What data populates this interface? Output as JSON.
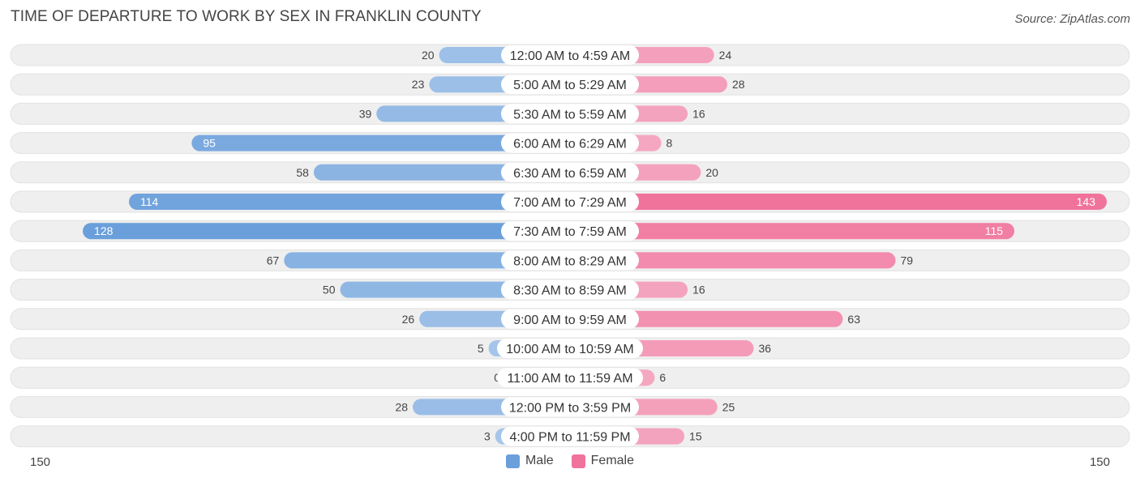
{
  "title": "TIME OF DEPARTURE TO WORK BY SEX IN FRANKLIN COUNTY",
  "source": "Source: ZipAtlas.com",
  "colors": {
    "male": "#6a9fdb",
    "male_light": "#a7c6ea",
    "female": "#f0739c",
    "female_light": "#f5a9c2",
    "row_bg": "#efefef"
  },
  "legend": {
    "male": "Male",
    "female": "Female"
  },
  "axis": {
    "left_label": "150",
    "right_label": "150"
  },
  "chart_data": {
    "type": "bar",
    "orientation": "horizontal-diverging",
    "title": "TIME OF DEPARTURE TO WORK BY SEX IN FRANKLIN COUNTY",
    "xlim": [
      -150,
      150
    ],
    "categories": [
      "12:00 AM to 4:59 AM",
      "5:00 AM to 5:29 AM",
      "5:30 AM to 5:59 AM",
      "6:00 AM to 6:29 AM",
      "6:30 AM to 6:59 AM",
      "7:00 AM to 7:29 AM",
      "7:30 AM to 7:59 AM",
      "8:00 AM to 8:29 AM",
      "8:30 AM to 8:59 AM",
      "9:00 AM to 9:59 AM",
      "10:00 AM to 10:59 AM",
      "11:00 AM to 11:59 AM",
      "12:00 PM to 3:59 PM",
      "4:00 PM to 11:59 PM"
    ],
    "series": [
      {
        "name": "Male",
        "values": [
          20,
          23,
          39,
          95,
          58,
          114,
          128,
          67,
          50,
          26,
          5,
          0,
          28,
          3
        ]
      },
      {
        "name": "Female",
        "values": [
          24,
          28,
          16,
          8,
          20,
          143,
          115,
          79,
          16,
          63,
          36,
          6,
          25,
          15
        ]
      }
    ]
  }
}
